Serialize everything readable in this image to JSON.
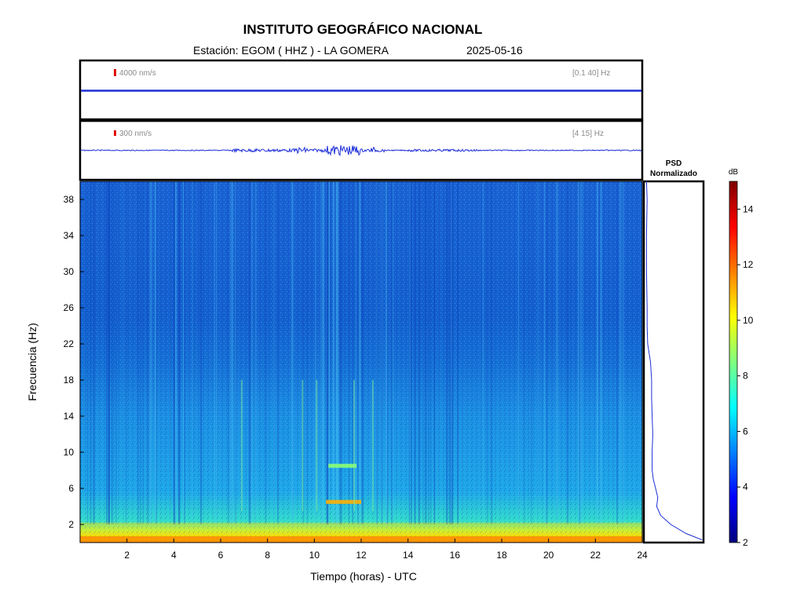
{
  "header": {
    "title": "INSTITUTO GEOGRÁFICO NACIONAL",
    "station": "Estación:  EGOM ( HHZ ) - LA GOMERA",
    "date": "2025-05-16"
  },
  "trace1": {
    "scale_label": "4000 nm/s",
    "band_label": "[0.1 40] Hz"
  },
  "trace2": {
    "scale_label": "300 nm/s",
    "band_label": "[4 15] Hz"
  },
  "psd": {
    "title_line1": "PSD",
    "title_line2": "Normalizado"
  },
  "colorbar": {
    "unit": "dB",
    "ticks": [
      2,
      4,
      6,
      8,
      10,
      12,
      14
    ],
    "range": [
      2,
      15
    ],
    "colormap": [
      "#00007f",
      "#0000ff",
      "#007fff",
      "#00ffff",
      "#7fff7f",
      "#ffff00",
      "#ff7f00",
      "#ff0000",
      "#7f0000"
    ]
  },
  "chart_data": {
    "type": "heatmap",
    "xlabel": "Tiempo (horas) - UTC",
    "ylabel": "Frecuencia  (Hz)",
    "xlim": [
      0,
      24
    ],
    "ylim": [
      0,
      40
    ],
    "x_ticks": [
      2,
      4,
      6,
      8,
      10,
      12,
      14,
      16,
      18,
      20,
      22,
      24
    ],
    "y_ticks": [
      2,
      6,
      10,
      14,
      18,
      22,
      26,
      30,
      34,
      38
    ],
    "features": [
      {
        "freq_range": [
          0,
          2
        ],
        "level_db": 10
      },
      {
        "freq_range": [
          2,
          6
        ],
        "level_db": 7
      },
      {
        "freq_range": [
          6,
          20
        ],
        "level_db": 5.5
      },
      {
        "freq_range": [
          20,
          40
        ],
        "level_db": 4.5
      },
      {
        "time_range": [
          10.5,
          12
        ],
        "freq": 4.5,
        "level_db": 12
      },
      {
        "time_range": [
          10.6,
          11.8
        ],
        "freq": 8.5,
        "level_db": 8
      }
    ],
    "psd_curve": {
      "freq": [
        0.3,
        1,
        2,
        3,
        4,
        5,
        6,
        7,
        8,
        10,
        12,
        14,
        16,
        18,
        20,
        22,
        24,
        26,
        30,
        34,
        38,
        40
      ],
      "value": [
        1.0,
        0.72,
        0.45,
        0.27,
        0.2,
        0.22,
        0.18,
        0.14,
        0.12,
        0.12,
        0.13,
        0.12,
        0.11,
        0.11,
        0.09,
        0.04,
        0.03,
        0.03,
        0.02,
        0.02,
        0.03,
        0.02
      ]
    }
  }
}
